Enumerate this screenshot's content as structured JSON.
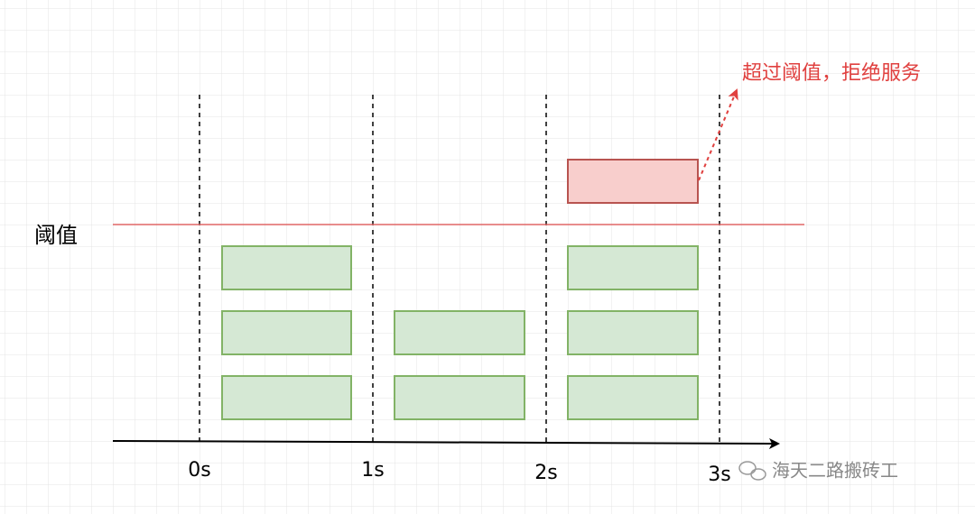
{
  "threshold_label": "阈值",
  "annotation": "超过阈值，拒绝服务",
  "axis": {
    "ticks": [
      "0s",
      "1s",
      "2s",
      "3s"
    ]
  },
  "watermark": "海天二路搬砖工"
}
